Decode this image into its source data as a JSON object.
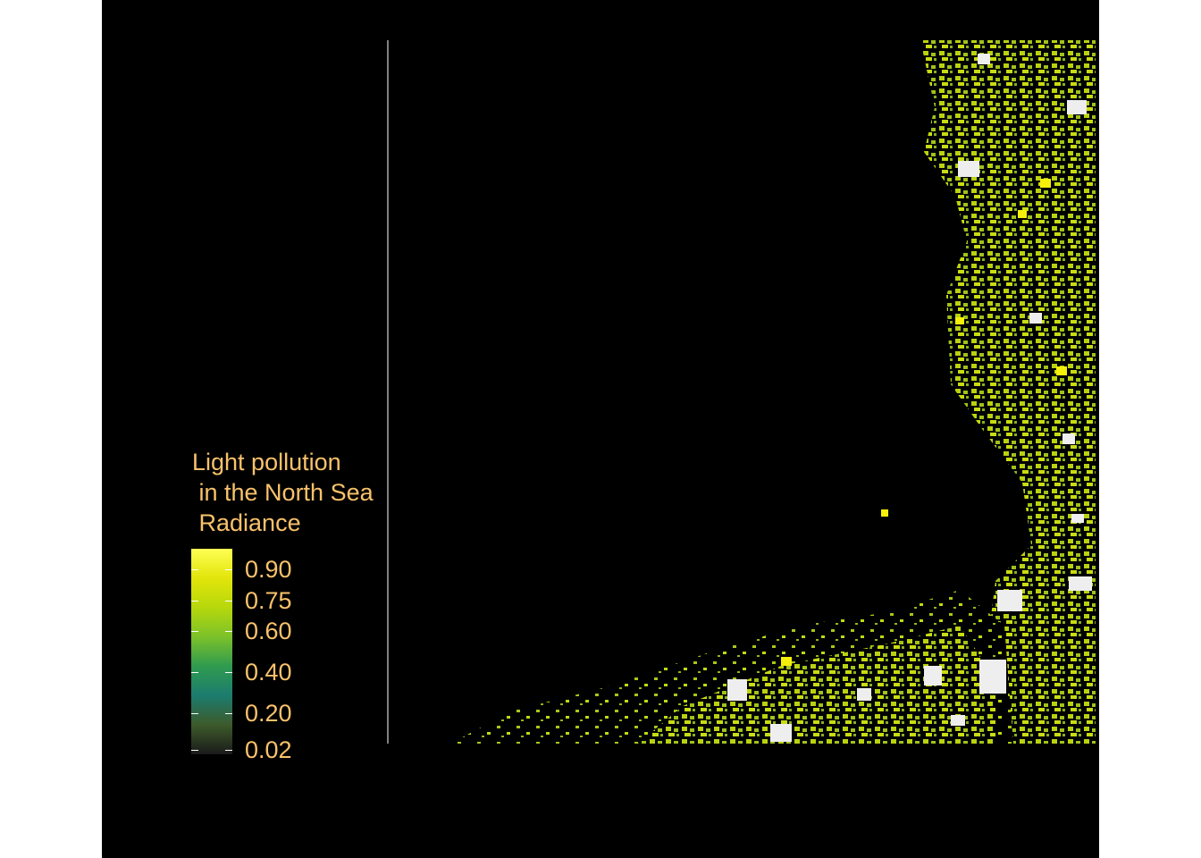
{
  "legend": {
    "title": "Light pollution\n in the North Sea\n Radiance",
    "ticks": [
      {
        "label": "0.90",
        "value": 0.9
      },
      {
        "label": "0.75",
        "value": 0.75
      },
      {
        "label": "0.60",
        "value": 0.6
      },
      {
        "label": "0.40",
        "value": 0.4
      },
      {
        "label": "0.20",
        "value": 0.2
      },
      {
        "label": "0.02",
        "value": 0.02
      }
    ],
    "gradient_colors": [
      "#1a1a1a",
      "#3d5a2a",
      "#1c7c6e",
      "#2f9b4f",
      "#7cc12a",
      "#b6d80c",
      "#e2e50a",
      "#ffff55"
    ]
  },
  "colors": {
    "background": "#000000",
    "text": "#f9c26b",
    "bright_land": "#c6e014",
    "saturated": "#f2f2f2"
  }
}
